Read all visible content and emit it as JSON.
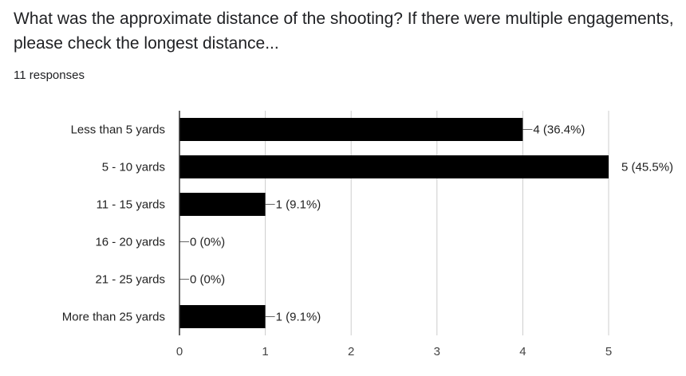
{
  "question": "What was the approximate distance of the shooting? If there were multiple engagements, please check the longest distance...",
  "response_count": "11 responses",
  "colors": {
    "bar": "#000000",
    "grid": "#cccccc",
    "axis": "#333333",
    "text": "#222222"
  },
  "chart_data": {
    "type": "bar",
    "orientation": "horizontal",
    "categories": [
      "Less than 5 yards",
      "5 - 10 yards",
      "11 - 15 yards",
      "16 - 20 yards",
      "21 - 25 yards",
      "More than 25 yards"
    ],
    "values": [
      4,
      5,
      1,
      0,
      0,
      1
    ],
    "labels": [
      "4 (36.4%)",
      "5 (45.5%)",
      "1 (9.1%)",
      "0 (0%)",
      "0 (0%)",
      "1 (9.1%)"
    ],
    "xlim": [
      0,
      5
    ],
    "xticks": [
      "0",
      "1",
      "2",
      "3",
      "4",
      "5"
    ],
    "grid": true,
    "title": "",
    "xlabel": "",
    "ylabel": ""
  }
}
